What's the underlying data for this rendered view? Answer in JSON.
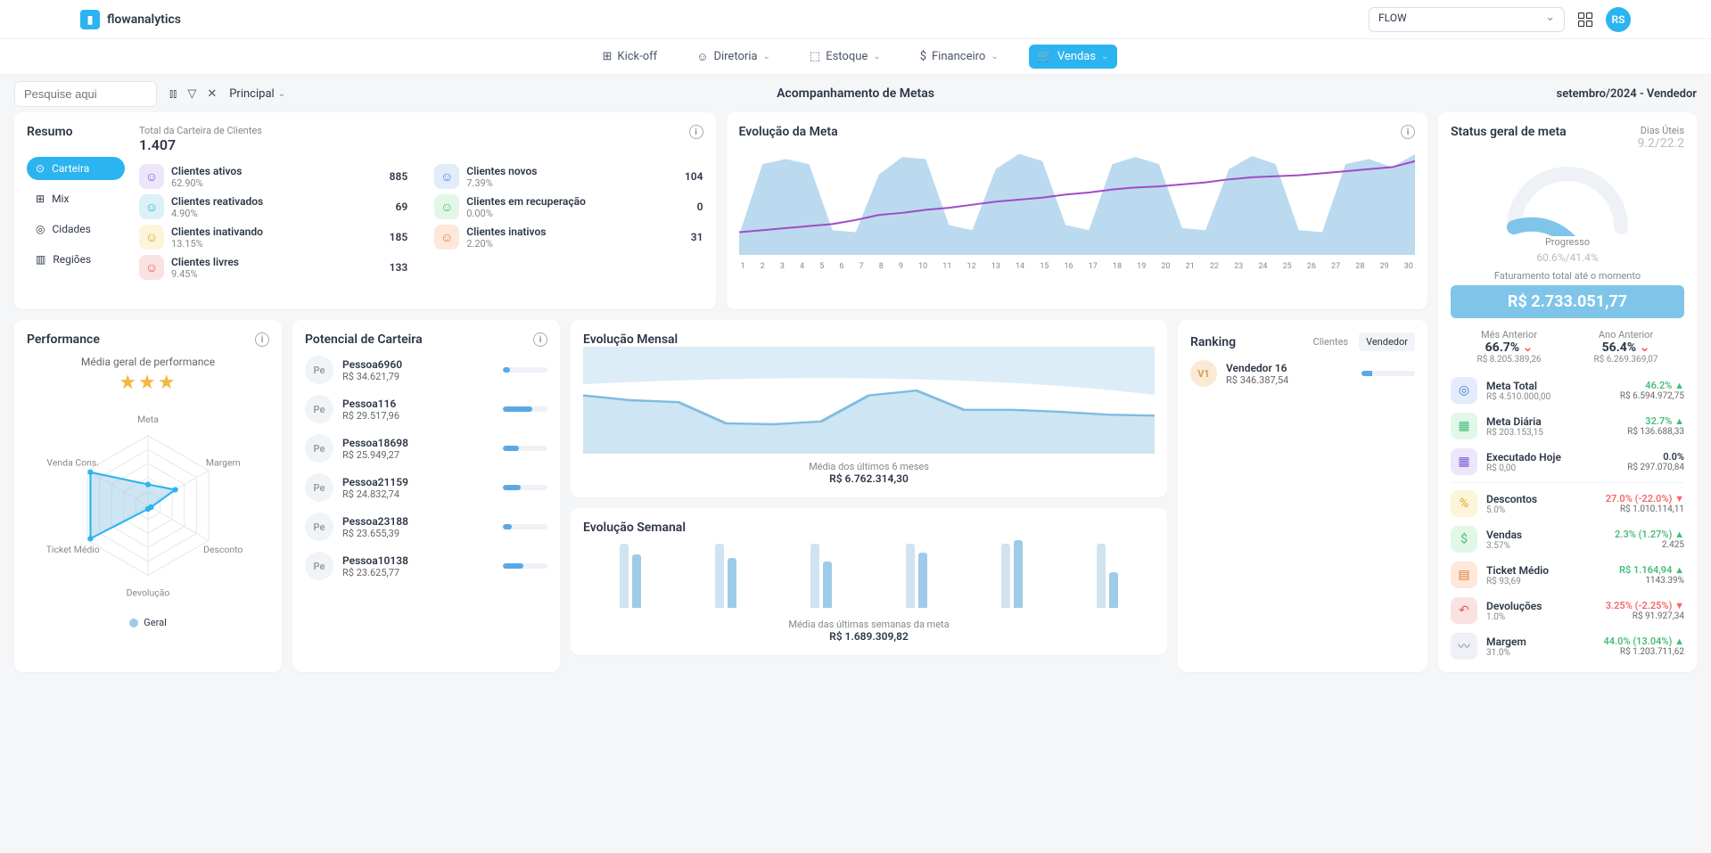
{
  "brand": "flowanalytics",
  "org_selector": "FLOW",
  "avatar_initials": "RS",
  "nav": {
    "kickoff": "Kick-off",
    "diretoria": "Diretoria",
    "estoque": "Estoque",
    "financeiro": "Financeiro",
    "vendas": "Vendas"
  },
  "subbar": {
    "search_placeholder": "Pesquise aqui",
    "dropdown": "Principal",
    "page_title": "Acompanhamento de Metas",
    "period": "setembro/2024 - Vendedor"
  },
  "resumo": {
    "title": "Resumo",
    "total_label": "Total da Carteira de Clientes",
    "total": "1.407",
    "tabs": {
      "carteira": "Carteira",
      "mix": "Mix",
      "cidades": "Cidades",
      "regioes": "Regiões"
    },
    "stats": [
      {
        "label": "Clientes ativos",
        "pct": "62.90%",
        "val": "885",
        "bg": "#ede6fb",
        "fg": "#7b5cd6"
      },
      {
        "label": "Clientes novos",
        "pct": "7.39%",
        "val": "104",
        "bg": "#e2ecfb",
        "fg": "#4b82d6"
      },
      {
        "label": "Clientes reativados",
        "pct": "4.90%",
        "val": "69",
        "bg": "#daf1f7",
        "fg": "#2bb4d6"
      },
      {
        "label": "Clientes em recuperação",
        "pct": "0.00%",
        "val": "0",
        "bg": "#e2f7e8",
        "fg": "#48bb78"
      },
      {
        "label": "Clientes inativando",
        "pct": "13.15%",
        "val": "185",
        "bg": "#fdf4da",
        "fg": "#d6a82b"
      },
      {
        "label": "Clientes inativos",
        "pct": "2.20%",
        "val": "31",
        "bg": "#fde8da",
        "fg": "#e27b3c"
      },
      {
        "label": "Clientes livres",
        "pct": "9.45%",
        "val": "133",
        "bg": "#fbe2e2",
        "fg": "#e05a5a"
      }
    ]
  },
  "evolucao_meta": {
    "title": "Evolução da Meta",
    "days": 30,
    "area_color": "#9ecbe8",
    "area2_color": "#d5e3ed",
    "line_color": "#a14cc7",
    "area_values": [
      0.15,
      0.85,
      0.9,
      0.85,
      0.2,
      0.18,
      0.75,
      0.92,
      0.9,
      0.25,
      0.2,
      0.8,
      0.95,
      0.88,
      0.25,
      0.2,
      0.85,
      0.92,
      0.85,
      0.22,
      0.2,
      0.8,
      0.93,
      0.85,
      0.2,
      0.18,
      0.85,
      0.9,
      0.82,
      0.95
    ],
    "line_values": [
      0.18,
      0.2,
      0.22,
      0.24,
      0.26,
      0.3,
      0.35,
      0.37,
      0.4,
      0.42,
      0.45,
      0.48,
      0.5,
      0.52,
      0.55,
      0.57,
      0.6,
      0.62,
      0.63,
      0.65,
      0.67,
      0.7,
      0.72,
      0.73,
      0.74,
      0.76,
      0.78,
      0.8,
      0.82,
      0.88
    ]
  },
  "performance": {
    "title": "Performance",
    "subtitle": "Média geral de performance",
    "stars": 3,
    "axes": [
      "Meta",
      "Margem",
      "Desconto",
      "Devolução",
      "Ticket Médio",
      "Venda Cons."
    ],
    "values": [
      0.3,
      0.45,
      0.05,
      0.05,
      0.95,
      0.95
    ],
    "fill_color": "#9ecbe8",
    "stroke_color": "#2bb4f0",
    "legend": "Geral"
  },
  "potencial": {
    "title": "Potencial de Carteira",
    "items": [
      {
        "name": "Pessoa6960",
        "val": "R$ 34.621,79",
        "pct": 15
      },
      {
        "name": "Pessoa116",
        "val": "R$ 29.517,96",
        "pct": 65
      },
      {
        "name": "Pessoa18698",
        "val": "R$ 25.949,27",
        "pct": 35
      },
      {
        "name": "Pessoa21159",
        "val": "R$ 24.832,74",
        "pct": 40
      },
      {
        "name": "Pessoa23188",
        "val": "R$ 23.655,39",
        "pct": 20
      },
      {
        "name": "Pessoa10138",
        "val": "R$ 23.625,77",
        "pct": 45
      }
    ],
    "bar_color": "#5aa9e6"
  },
  "evo_mensal": {
    "title": "Evolução Mensal",
    "sub_label": "Média dos últimos 6 meses",
    "sub_val": "R$ 6.762.314,30",
    "area_color": "#9ecbe8",
    "line_color": "#7fbce0",
    "values": [
      0.55,
      0.5,
      0.48,
      0.26,
      0.25,
      0.28,
      0.55,
      0.6,
      0.4,
      0.4,
      0.38,
      0.35,
      0.34
    ]
  },
  "evo_semanal": {
    "title": "Evolução Semanal",
    "sub_label": "Média das últimas semanas da meta",
    "sub_val": "R$ 1.689.309,82",
    "primary_color": "#9ecbe8",
    "secondary_color": "#d0e3f0",
    "pairs": [
      [
        0.9,
        0.75
      ],
      [
        0.9,
        0.7
      ],
      [
        0.9,
        0.65
      ],
      [
        0.9,
        0.78
      ],
      [
        0.9,
        0.95
      ],
      [
        0.9,
        0.5
      ]
    ]
  },
  "ranking": {
    "title": "Ranking",
    "toggle1": "Clientes",
    "toggle2": "Vendedor",
    "item": {
      "initials": "V1",
      "name": "Vendedor 16",
      "val": "R$ 346.387,54",
      "pct": 20,
      "bar_color": "#5aa9e6"
    }
  },
  "status": {
    "title": "Status geral de meta",
    "dias_label": "Dias Úteis",
    "dias_cur": "9.2",
    "dias_total": "/22.2",
    "progresso_label": "Progresso",
    "progresso_pct": "60.6%",
    "progresso_ref": "/41.4%",
    "gauge_value": 0.606,
    "gauge_color": "#7fc5e9",
    "fat_label": "Faturamento total até o momento",
    "fat_val": "R$ 2.733.051,77",
    "mes_anterior": {
      "label": "Mês Anterior",
      "pct": "66.7%",
      "dir": "down",
      "amt": "R$ 8.205.389,26"
    },
    "ano_anterior": {
      "label": "Ano Anterior",
      "pct": "56.4%",
      "dir": "down",
      "amt": "R$ 6.269.369,07"
    },
    "metrics_a": [
      {
        "icon": "◎",
        "bg": "#e2ecfb",
        "fg": "#4b82d6",
        "label": "Meta Total",
        "sub": "R$ 4.510.000,00",
        "pct": "46.2%",
        "pct_class": "green",
        "amt": "R$ 6.594.972,75",
        "arrow": "▲"
      },
      {
        "icon": "▦",
        "bg": "#e2f7e8",
        "fg": "#48bb78",
        "label": "Meta Diária",
        "sub": "R$ 203.153,15",
        "pct": "32.7%",
        "pct_class": "green",
        "amt": "R$ 136.688,33",
        "arrow": "▲"
      },
      {
        "icon": "▦",
        "bg": "#ede6fb",
        "fg": "#7b5cd6",
        "label": "Executado Hoje",
        "sub": "R$ 0,00",
        "pct": "0.0%",
        "pct_class": "",
        "amt": "R$ 297.070,84",
        "arrow": ""
      }
    ],
    "metrics_b": [
      {
        "icon": "%",
        "bg": "#fdf4da",
        "fg": "#d6a82b",
        "label": "Descontos",
        "sub": "5.0%",
        "pct": "27.0% (-22.0%)",
        "pct_class": "red",
        "amt": "R$ 1.010.114,11",
        "arrow": "▼"
      },
      {
        "icon": "$",
        "bg": "#e2f7e8",
        "fg": "#48bb78",
        "label": "Vendas",
        "sub": "3.57%",
        "pct": "2.3% (1.27%)",
        "pct_class": "green",
        "amt": "2.425",
        "arrow": "▲"
      },
      {
        "icon": "▤",
        "bg": "#fde8da",
        "fg": "#e27b3c",
        "label": "Ticket Médio",
        "sub": "R$ 93,69",
        "pct": "R$ 1.164,94",
        "pct_class": "green",
        "amt": "1143.39%",
        "arrow": "▲"
      },
      {
        "icon": "↶",
        "bg": "#fbe2e2",
        "fg": "#e05a5a",
        "label": "Devoluções",
        "sub": "1.0%",
        "pct": "3.25% (-2.25%)",
        "pct_class": "red",
        "amt": "R$ 91.927,34",
        "arrow": "▼"
      },
      {
        "icon": "〰",
        "bg": "#eef1f6",
        "fg": "#888",
        "label": "Margem",
        "sub": "31.0%",
        "pct": "44.0% (13.04%)",
        "pct_class": "green",
        "amt": "R$ 1.203.711,62",
        "arrow": "▲"
      }
    ]
  }
}
